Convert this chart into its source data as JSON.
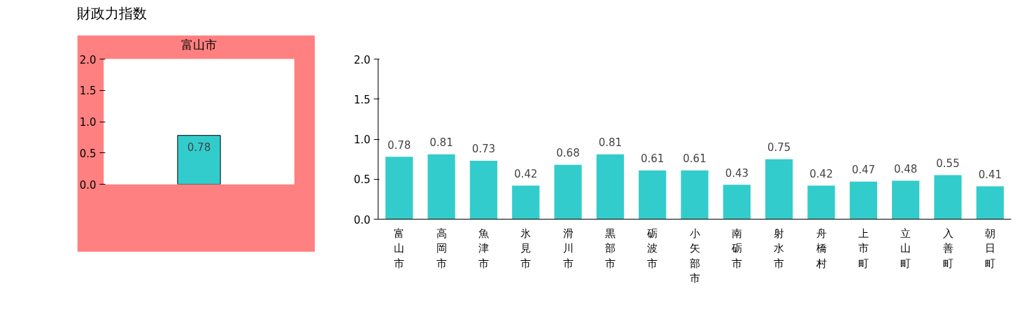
{
  "chart_data": [
    {
      "type": "bar",
      "title": "財政力指数",
      "categories": [
        "富山市"
      ],
      "values": [
        0.78
      ],
      "color": "#33cccc",
      "ylim": [
        0,
        2
      ],
      "yticks": [
        {
          "value": 0,
          "label": "0.0"
        },
        {
          "value": 0.5,
          "label": "0.5"
        },
        {
          "value": 1,
          "label": "1.0"
        },
        {
          "value": 1.5,
          "label": "1.5"
        },
        {
          "value": 2,
          "label": "2.0"
        }
      ],
      "data_labels": true,
      "grid": false
    },
    {
      "type": "bar",
      "categories": [
        "富山市",
        "高岡市",
        "魚津市",
        "氷見市",
        "滑川市",
        "黒部市",
        "砺波市",
        "小矢部市",
        "南砺市",
        "射水市",
        "舟橋村",
        "上市町",
        "立山町",
        "入善町",
        "朝日町"
      ],
      "values": [
        0.78,
        0.81,
        0.73,
        0.42,
        0.68,
        0.81,
        0.61,
        0.61,
        0.43,
        0.75,
        0.42,
        0.47,
        0.48,
        0.55,
        0.41
      ],
      "color": "#33cccc",
      "ylim": [
        0,
        2
      ],
      "yticks": [
        {
          "value": 0,
          "label": "0.0"
        },
        {
          "value": 0.5,
          "label": "0.5"
        },
        {
          "value": 1,
          "label": "1.0"
        },
        {
          "value": 1.5,
          "label": "1.5"
        },
        {
          "value": 2,
          "label": "2.0"
        }
      ],
      "data_labels": true,
      "grid": false
    }
  ]
}
